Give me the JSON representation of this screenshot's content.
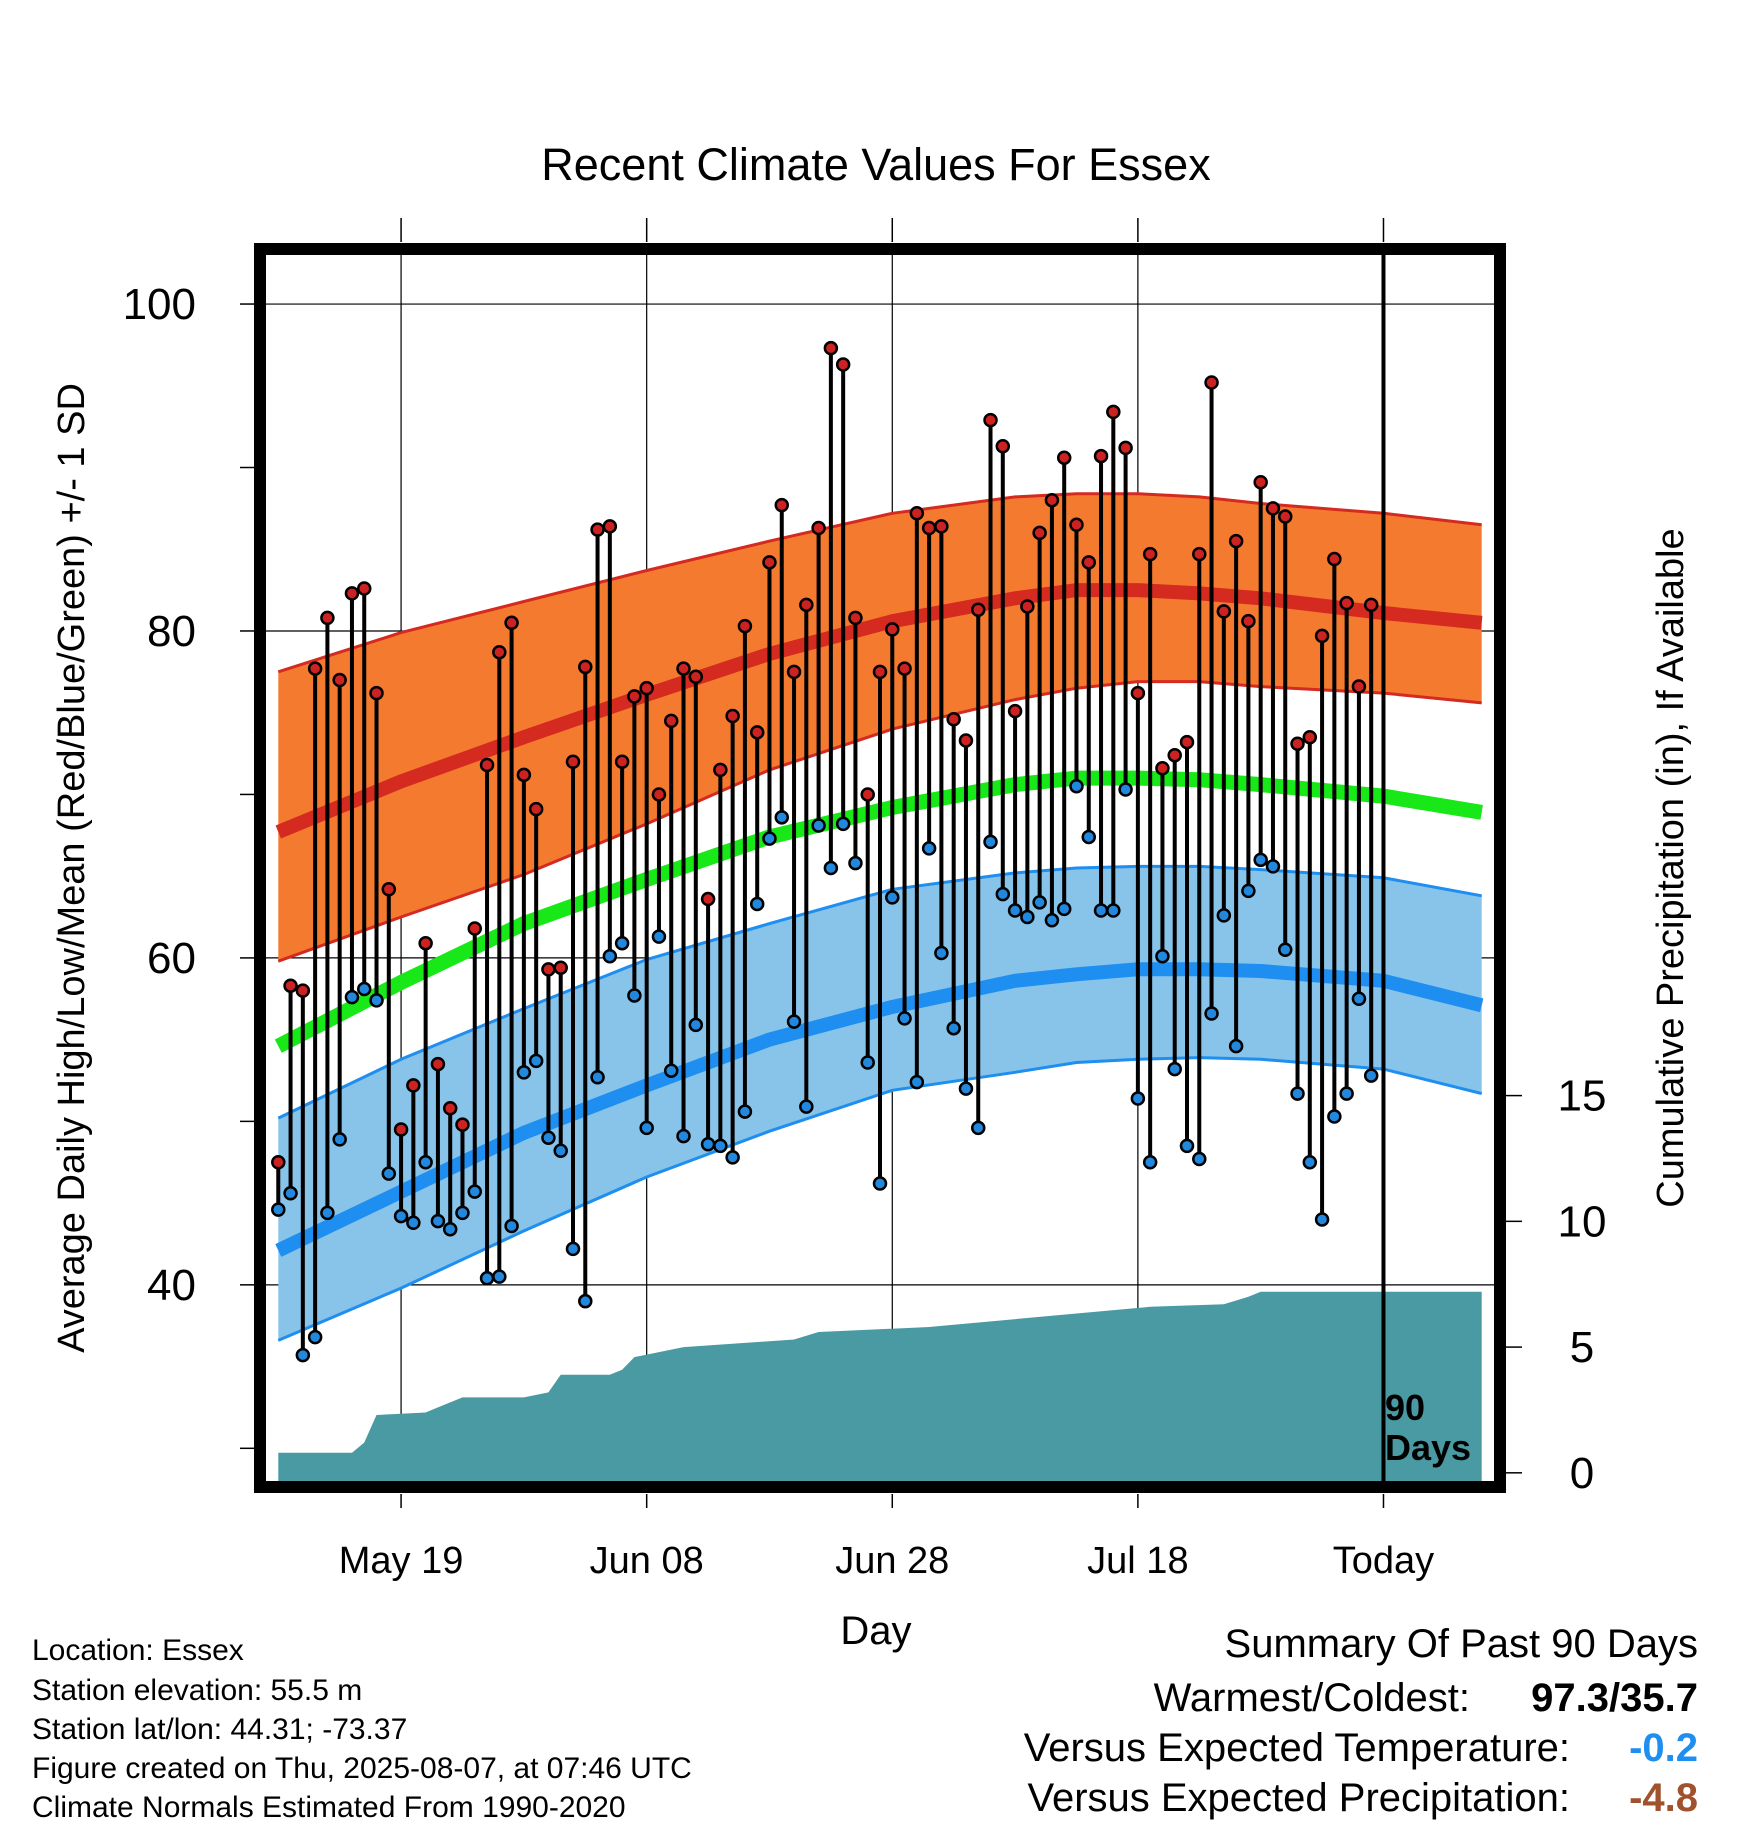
{
  "title": "Recent Climate Values For Essex",
  "xlabel": "Day",
  "ylabel_left": "Average Daily High/Low/Mean (Red/Blue/Green) +/- 1 SD",
  "ylabel_right": "Cumulative Precipitation (in), If Available",
  "window_label": [
    "90",
    "Days"
  ],
  "footer": [
    "Location: Essex",
    "Station elevation: 55.5 m",
    "Station lat/lon: 44.31; -73.37",
    "Figure created on Thu, 2025-08-07, at 07:46 UTC",
    "Climate Normals Estimated From 1990-2020"
  ],
  "summary": {
    "title": "Summary Of Past 90 Days",
    "warm_cold_label": "Warmest/Coldest:",
    "warm_cold_value": "97.3/35.7",
    "temp_label": "Versus Expected Temperature:",
    "temp_value": "-0.2",
    "precip_label": "Versus Expected Precipitation:",
    "precip_value": "-4.8"
  },
  "colors": {
    "high_band": "#f47a30",
    "high_line": "#d42a20",
    "low_band": "#88c4ea",
    "low_line": "#1e8ef0",
    "mean_line": "#18e818",
    "precip": "#4a9aa4",
    "high_dot": "#cc2222",
    "low_dot": "#2288dd",
    "temp_value": "#1e8ef0",
    "precip_value": "#a0522d"
  },
  "chart_data": {
    "type": "line",
    "x_ticks": [
      {
        "day": 10,
        "label": "May 19"
      },
      {
        "day": 30,
        "label": "Jun 08"
      },
      {
        "day": 50,
        "label": "Jun 28"
      },
      {
        "day": 70,
        "label": "Jul 18"
      },
      {
        "day": 90,
        "label": "Today"
      }
    ],
    "xlim": [
      -1,
      99
    ],
    "ylim_temp": [
      28,
      103
    ],
    "y_ticks_temp": [
      40,
      60,
      80,
      100
    ],
    "y_ticks_precip": [
      0,
      5,
      10,
      15
    ],
    "precip_axis": {
      "zero_at_temp": 28.5,
      "in_per_temp_unit": 0.65
    },
    "normals": {
      "days": [
        0,
        10,
        20,
        30,
        40,
        50,
        60,
        65,
        70,
        75,
        80,
        90,
        98
      ],
      "high": [
        67.7,
        70.8,
        73.5,
        76.1,
        78.6,
        80.6,
        82.0,
        82.5,
        82.5,
        82.3,
        82.0,
        81.1,
        80.5
      ],
      "high_upper": [
        77.5,
        79.9,
        81.8,
        83.7,
        85.5,
        87.2,
        88.2,
        88.4,
        88.4,
        88.2,
        87.8,
        87.2,
        86.5
      ],
      "high_lower": [
        59.8,
        62.5,
        65.1,
        68.2,
        71.5,
        74.0,
        75.8,
        76.5,
        76.9,
        76.9,
        76.6,
        76.2,
        75.6
      ],
      "mean": [
        54.6,
        58.5,
        62.1,
        64.8,
        67.4,
        69.2,
        70.6,
        71.0,
        71.0,
        70.9,
        70.6,
        69.9,
        68.9
      ],
      "low": [
        42.1,
        45.7,
        49.3,
        52.2,
        55.0,
        57.0,
        58.6,
        59.0,
        59.3,
        59.3,
        59.2,
        58.6,
        57.1
      ],
      "low_upper": [
        50.2,
        53.8,
        56.9,
        59.9,
        62.1,
        64.2,
        65.2,
        65.5,
        65.6,
        65.6,
        65.4,
        64.9,
        63.8
      ],
      "low_lower": [
        36.6,
        39.8,
        43.3,
        46.6,
        49.4,
        51.9,
        53.0,
        53.6,
        53.8,
        53.9,
        53.8,
        53.2,
        51.7
      ]
    },
    "daily_high": [
      47.5,
      58.3,
      58.0,
      77.7,
      80.8,
      77.0,
      82.3,
      82.6,
      76.2,
      64.2,
      49.5,
      52.2,
      60.9,
      53.5,
      50.8,
      49.8,
      61.8,
      71.8,
      78.7,
      80.5,
      71.2,
      69.1,
      59.3,
      59.4,
      72.0,
      77.8,
      86.2,
      86.4,
      72.0,
      76.0,
      76.5,
      70.0,
      74.5,
      77.7,
      77.2,
      63.6,
      71.5,
      74.8,
      80.3,
      73.8,
      84.2,
      87.7,
      77.5,
      81.6,
      86.3,
      97.3,
      96.3,
      80.8,
      70.0,
      77.5,
      80.1,
      77.7,
      87.2,
      86.3,
      86.4,
      74.6,
      73.3,
      81.3,
      92.9,
      91.3,
      75.1,
      81.5,
      86.0,
      88.0,
      90.6,
      86.5,
      84.2,
      90.7,
      93.4,
      91.2,
      76.2,
      84.7,
      71.6,
      72.4,
      73.2,
      84.7,
      95.2,
      81.2,
      85.5,
      80.6,
      89.1,
      87.5,
      87.0,
      73.1,
      73.5,
      79.7,
      84.4,
      81.7,
      76.6,
      81.6
    ],
    "daily_low": [
      44.6,
      45.6,
      35.7,
      36.8,
      44.4,
      48.9,
      57.6,
      58.1,
      57.4,
      46.8,
      44.2,
      43.8,
      47.5,
      43.9,
      43.4,
      44.4,
      45.7,
      40.4,
      40.5,
      43.6,
      53.0,
      53.7,
      49.0,
      48.2,
      42.2,
      39.0,
      52.7,
      60.1,
      60.9,
      57.7,
      49.6,
      61.3,
      53.1,
      49.1,
      55.9,
      48.6,
      48.5,
      47.8,
      50.6,
      63.3,
      67.3,
      68.6,
      56.1,
      50.9,
      68.1,
      65.5,
      68.2,
      65.8,
      53.6,
      46.2,
      63.7,
      56.3,
      52.4,
      66.7,
      60.3,
      55.7,
      52.0,
      49.6,
      67.1,
      63.9,
      62.9,
      62.5,
      63.4,
      62.3,
      63.0,
      70.5,
      67.4,
      62.9,
      62.9,
      70.3,
      51.4,
      47.5,
      60.1,
      53.2,
      48.5,
      47.7,
      56.6,
      62.6,
      54.6,
      64.1,
      66.0,
      65.6,
      60.5,
      51.7,
      47.5,
      44.0,
      50.3,
      51.7,
      57.5,
      52.8
    ],
    "cumulative_precip_days": [
      0,
      6,
      7,
      8,
      12,
      13,
      15,
      20,
      21,
      22,
      23,
      27,
      28,
      29,
      31,
      33,
      42,
      44,
      53,
      71,
      77,
      79,
      80,
      90,
      98
    ],
    "cumulative_precip": [
      0.8,
      0.8,
      1.2,
      2.3,
      2.4,
      2.6,
      3.0,
      3.0,
      3.1,
      3.2,
      3.9,
      3.9,
      4.1,
      4.6,
      4.8,
      5.0,
      5.3,
      5.6,
      5.8,
      6.6,
      6.7,
      7.0,
      7.2,
      7.2,
      7.2
    ]
  }
}
